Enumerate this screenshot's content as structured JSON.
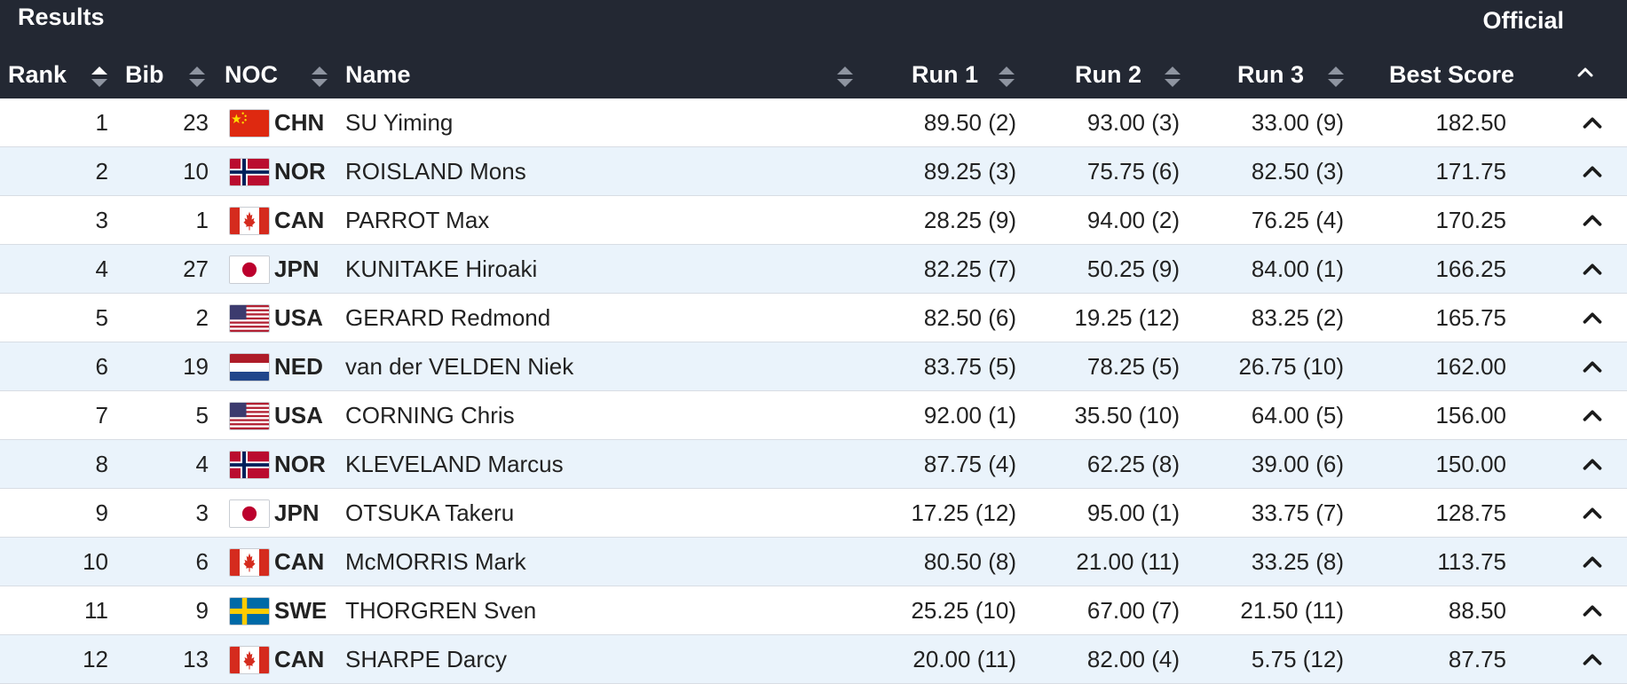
{
  "header": {
    "title": "Results",
    "status": "Official",
    "columns": {
      "rank": "Rank",
      "bib": "Bib",
      "noc": "NOC",
      "name": "Name",
      "run1": "Run 1",
      "run2": "Run 2",
      "run3": "Run 3",
      "best": "Best Score"
    }
  },
  "colors": {
    "header_bg": "#232833",
    "row_alt_bg": "#eaf3fb",
    "row_bg": "#ffffff"
  },
  "rows": [
    {
      "rank": "1",
      "bib": "23",
      "flag": "china-flag-icon",
      "noc": "CHN",
      "name": "SU Yiming",
      "run1": "89.50 (2)",
      "run2": "93.00 (3)",
      "run3": "33.00 (9)",
      "best": "182.50"
    },
    {
      "rank": "2",
      "bib": "10",
      "flag": "norway-flag-icon",
      "noc": "NOR",
      "name": "ROISLAND Mons",
      "run1": "89.25 (3)",
      "run2": "75.75 (6)",
      "run3": "82.50 (3)",
      "best": "171.75"
    },
    {
      "rank": "3",
      "bib": "1",
      "flag": "canada-flag-icon",
      "noc": "CAN",
      "name": "PARROT Max",
      "run1": "28.25 (9)",
      "run2": "94.00 (2)",
      "run3": "76.25 (4)",
      "best": "170.25"
    },
    {
      "rank": "4",
      "bib": "27",
      "flag": "japan-flag-icon",
      "noc": "JPN",
      "name": "KUNITAKE Hiroaki",
      "run1": "82.25 (7)",
      "run2": "50.25 (9)",
      "run3": "84.00 (1)",
      "best": "166.25"
    },
    {
      "rank": "5",
      "bib": "2",
      "flag": "usa-flag-icon",
      "noc": "USA",
      "name": "GERARD Redmond",
      "run1": "82.50 (6)",
      "run2": "19.25 (12)",
      "run3": "83.25 (2)",
      "best": "165.75"
    },
    {
      "rank": "6",
      "bib": "19",
      "flag": "netherlands-flag-icon",
      "noc": "NED",
      "name": "van der VELDEN Niek",
      "run1": "83.75 (5)",
      "run2": "78.25 (5)",
      "run3": "26.75 (10)",
      "best": "162.00"
    },
    {
      "rank": "7",
      "bib": "5",
      "flag": "usa-flag-icon",
      "noc": "USA",
      "name": "CORNING Chris",
      "run1": "92.00 (1)",
      "run2": "35.50 (10)",
      "run3": "64.00 (5)",
      "best": "156.00"
    },
    {
      "rank": "8",
      "bib": "4",
      "flag": "norway-flag-icon",
      "noc": "NOR",
      "name": "KLEVELAND Marcus",
      "run1": "87.75 (4)",
      "run2": "62.25 (8)",
      "run3": "39.00 (6)",
      "best": "150.00"
    },
    {
      "rank": "9",
      "bib": "3",
      "flag": "japan-flag-icon",
      "noc": "JPN",
      "name": "OTSUKA Takeru",
      "run1": "17.25 (12)",
      "run2": "95.00 (1)",
      "run3": "33.75 (7)",
      "best": "128.75"
    },
    {
      "rank": "10",
      "bib": "6",
      "flag": "canada-flag-icon",
      "noc": "CAN",
      "name": "McMORRIS Mark",
      "run1": "80.50 (8)",
      "run2": "21.00 (11)",
      "run3": "33.25 (8)",
      "best": "113.75"
    },
    {
      "rank": "11",
      "bib": "9",
      "flag": "sweden-flag-icon",
      "noc": "SWE",
      "name": "THORGREN Sven",
      "run1": "25.25 (10)",
      "run2": "67.00 (7)",
      "run3": "21.50 (11)",
      "best": "88.50"
    },
    {
      "rank": "12",
      "bib": "13",
      "flag": "canada-flag-icon",
      "noc": "CAN",
      "name": "SHARPE Darcy",
      "run1": "20.00 (11)",
      "run2": "82.00 (4)",
      "run3": "5.75 (12)",
      "best": "87.75"
    }
  ]
}
